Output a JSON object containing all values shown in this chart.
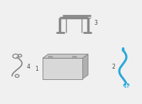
{
  "bg_color": "#f0f0f0",
  "line_color": "#888888",
  "highlight_color": "#29a8d8",
  "label_color": "#444444",
  "label_fontsize": 5.5
}
